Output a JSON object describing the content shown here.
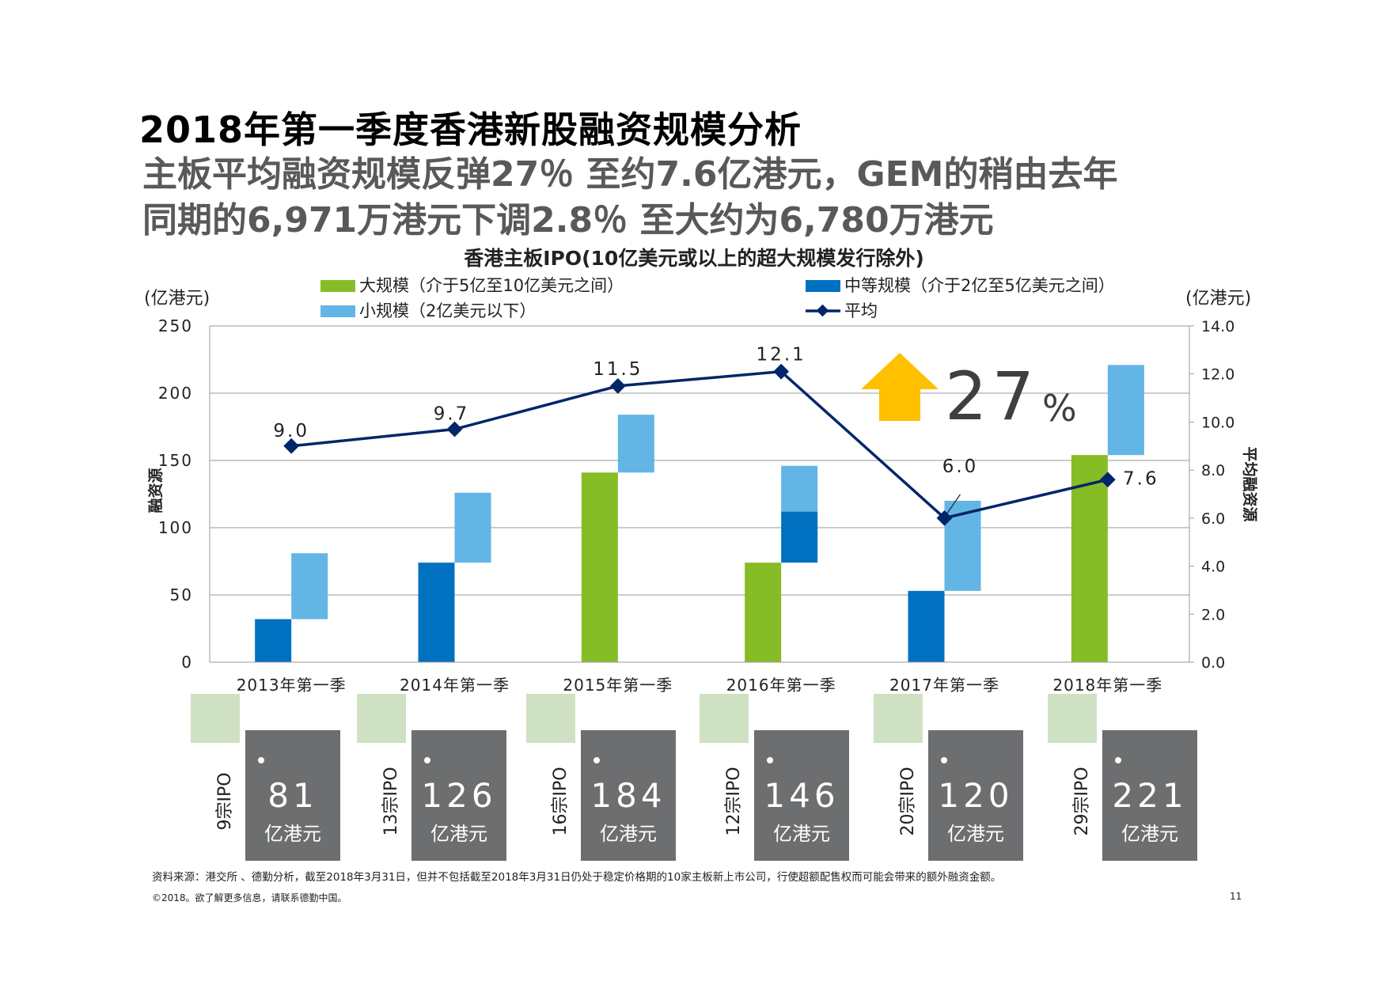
{
  "title": "2018年第一季度香港新股融资规模分析",
  "subtitle": {
    "line1": "主板平均融资规模反弹27％ 至约7.6亿港元，GEM的稍由去年",
    "line2": "同期的6,971万港元下调2.8％ 至大约为6,780万港元"
  },
  "colors": {
    "large": "#86bc25",
    "medium": "#0071c0",
    "small": "#62b5e5",
    "average": "#002669",
    "arrow": "#ffc000",
    "box": "#6c6e70",
    "box_shadow": "#cfe1c3"
  },
  "chart_data": {
    "type": "bar",
    "title": "香港主板IPO(10亿美元或以上的超大规模发行除外)",
    "categories": [
      "2013年第一季",
      "2014年第一季",
      "2015年第一季",
      "2016年第一季",
      "2017年第一季",
      "2018年第一季"
    ],
    "series": [
      {
        "name": "大规模（介于5亿至10亿美元之间）",
        "key": "large",
        "values": [
          0,
          0,
          141,
          74,
          0,
          154
        ]
      },
      {
        "name": "中等规模（介于2亿至5亿美元之间）",
        "key": "medium",
        "values": [
          32,
          74,
          0,
          38,
          53,
          0
        ]
      },
      {
        "name": "小规模（2亿美元以下）",
        "key": "small",
        "values": [
          49,
          52,
          43,
          34,
          67,
          67
        ]
      }
    ],
    "line_series": {
      "name": "平均",
      "values": [
        9.0,
        9.7,
        11.5,
        12.1,
        6.0,
        7.6
      ],
      "labels": [
        "9.0",
        "9.7",
        "11.5",
        "12.1",
        "6.0",
        "7.6"
      ]
    },
    "ylabel": "融资源",
    "y2label": "平均融资源",
    "yunit": "(亿港元)",
    "y2unit": "(亿港元)",
    "ylim": [
      0,
      250
    ],
    "yticks": [
      "0",
      "50",
      "100",
      "150",
      "200",
      "250"
    ],
    "y2lim": [
      0,
      14
    ],
    "y2ticks": [
      "0.0",
      "2.0",
      "4.0",
      "6.0",
      "8.0",
      "10.0",
      "12.0",
      "14.0"
    ],
    "annotation": {
      "number": "27",
      "symbol": "%"
    },
    "grid": true,
    "legend": "top"
  },
  "boxes": [
    {
      "deals": "9宗IPO",
      "value": "81",
      "unit": "亿港元"
    },
    {
      "deals": "13宗IPO",
      "value": "126",
      "unit": "亿港元"
    },
    {
      "deals": "16宗IPO",
      "value": "184",
      "unit": "亿港元"
    },
    {
      "deals": "12宗IPO",
      "value": "146",
      "unit": "亿港元"
    },
    {
      "deals": "20宗IPO",
      "value": "120",
      "unit": "亿港元"
    },
    {
      "deals": "29宗IPO",
      "value": "221",
      "unit": "亿港元"
    }
  ],
  "footer": {
    "source": "资料来源：港交所 、德勤分析，截至2018年3月31日，但并不包括截至2018年3月31日仍处于稳定价格期的10家主板新上市公司，行使超额配售权而可能会带来的额外融资金额。",
    "copyright": "©2018。欲了解更多信息，请联系德勤中国。",
    "page": "11"
  }
}
